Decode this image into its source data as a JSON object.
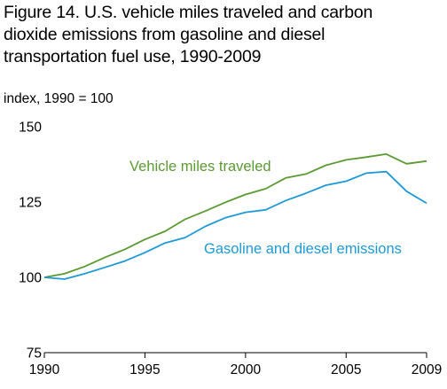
{
  "chart_data": {
    "type": "line",
    "title_lines": [
      "Figure 14. U.S. vehicle miles traveled and carbon",
      "dioxide emissions from gasoline and diesel",
      "transportation fuel use, 1990-2009"
    ],
    "ylabel": "index, 1990 = 100",
    "x": [
      1990,
      1991,
      1992,
      1993,
      1994,
      1995,
      1996,
      1997,
      1998,
      1999,
      2000,
      2001,
      2002,
      2003,
      2004,
      2005,
      2006,
      2007,
      2008,
      2009
    ],
    "xlim": [
      1990,
      2009
    ],
    "ylim": [
      75,
      150
    ],
    "x_ticks": [
      "1990",
      "1995",
      "2000",
      "2005",
      "2009"
    ],
    "y_ticks": [
      "150",
      "125",
      "100",
      "75"
    ],
    "grid": false,
    "series": [
      {
        "name": "Vehicle miles traveled",
        "color": "#5b9a32",
        "values": [
          100,
          101.2,
          103.6,
          106.6,
          109.3,
          112.6,
          115.3,
          119.3,
          122.0,
          124.9,
          127.5,
          129.4,
          133.0,
          134.3,
          137.2,
          139.0,
          139.9,
          140.9,
          137.7,
          138.6
        ]
      },
      {
        "name": "Gasoline and diesel emissions",
        "color": "#1d9ad6",
        "values": [
          100,
          99.4,
          101.2,
          103.3,
          105.4,
          108.2,
          111.4,
          113.2,
          116.9,
          119.8,
          121.6,
          122.4,
          125.5,
          127.9,
          130.6,
          131.9,
          134.6,
          135.1,
          128.6,
          124.6
        ]
      }
    ]
  }
}
